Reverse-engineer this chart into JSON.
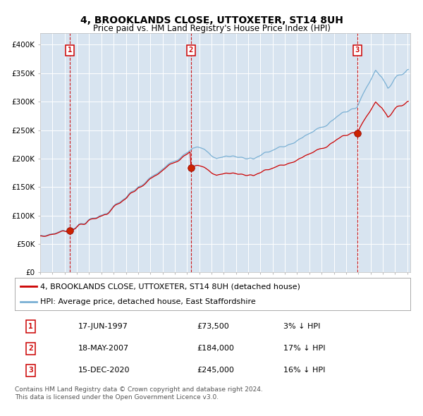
{
  "title": "4, BROOKLANDS CLOSE, UTTOXETER, ST14 8UH",
  "subtitle": "Price paid vs. HM Land Registry's House Price Index (HPI)",
  "ylim": [
    0,
    420000
  ],
  "yticks": [
    0,
    50000,
    100000,
    150000,
    200000,
    250000,
    300000,
    350000,
    400000
  ],
  "ytick_labels": [
    "£0",
    "£50K",
    "£100K",
    "£150K",
    "£200K",
    "£250K",
    "£300K",
    "£350K",
    "£400K"
  ],
  "plot_bg_color": "#d8e4f0",
  "hpi_color": "#7ab0d4",
  "price_color": "#cc0000",
  "vline_color": "#cc0000",
  "legend_label_price": "4, BROOKLANDS CLOSE, UTTOXETER, ST14 8UH (detached house)",
  "legend_label_hpi": "HPI: Average price, detached house, East Staffordshire",
  "sale_dates_ts": [
    1997,
    2007,
    2020
  ],
  "sale_months": [
    6,
    5,
    12
  ],
  "sale_prices": [
    73500,
    184000,
    245000
  ],
  "table_rows": [
    [
      "1",
      "17-JUN-1997",
      "£73,500",
      "3% ↓ HPI"
    ],
    [
      "2",
      "18-MAY-2007",
      "£184,000",
      "17% ↓ HPI"
    ],
    [
      "3",
      "15-DEC-2020",
      "£245,000",
      "16% ↓ HPI"
    ]
  ],
  "footer": "Contains HM Land Registry data © Crown copyright and database right 2024.\nThis data is licensed under the Open Government Licence v3.0.",
  "title_fontsize": 10,
  "subtitle_fontsize": 8.5,
  "tick_fontsize": 7.5,
  "legend_fontsize": 8,
  "table_fontsize": 8,
  "footer_fontsize": 6.5
}
